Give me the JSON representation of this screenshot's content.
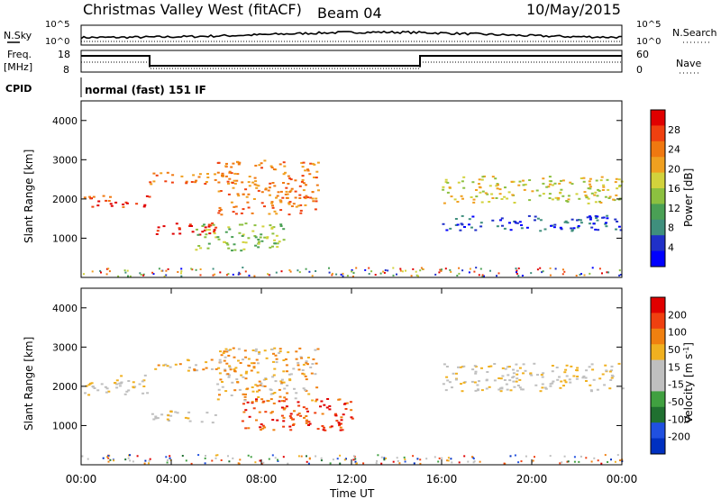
{
  "header": {
    "title": "Christmas Valley West (fitACF)",
    "beam": "Beam 04",
    "date": "10/May/2015"
  },
  "top_panels": {
    "nsky_label": "N.Sky",
    "nsearch_label": "N.Search",
    "noise_ticks": [
      "10^5",
      "10^0"
    ],
    "freq_label_line1": "Freq.",
    "freq_label_line2": "[MHz]",
    "freq_ticks": [
      "18",
      "8"
    ],
    "nave_label": "Nave",
    "nave_ticks": [
      "60",
      "0"
    ],
    "cpid_label": "CPID",
    "cpid_value": "normal (fast) 151 IF"
  },
  "colors": {
    "power_scale": [
      "#0000ff",
      "#2030c8",
      "#3f8f7d",
      "#4aa055",
      "#8cc040",
      "#d2d23c",
      "#f0a020",
      "#f07810",
      "#f04010",
      "#e00000"
    ],
    "velocity_scale": [
      "#0030c0",
      "#2050e0",
      "#207030",
      "#40a040",
      "#bfbfbf",
      "#bfbfbf",
      "#f0b020",
      "#f08010",
      "#f04010",
      "#e00000"
    ],
    "ground": "#bdbdb0"
  },
  "chart_data": [
    {
      "type": "heatmap",
      "name": "power-panel",
      "ylabel": "Slant Range [km]",
      "ylim": [
        0,
        4500
      ],
      "yticks": [
        "4000",
        "3000",
        "2000",
        "1000"
      ],
      "xlim": [
        0,
        24
      ],
      "colorbar_label": "Power [dB]",
      "colorbar_ticks": [
        "28",
        "24",
        "20",
        "16",
        "12",
        "8",
        "4"
      ],
      "bands": [
        {
          "x": [
            0,
            3
          ],
          "y": [
            1800,
            2100
          ],
          "level": 8
        },
        {
          "x": [
            3,
            6
          ],
          "y": [
            1100,
            1400
          ],
          "level": 9
        },
        {
          "x": [
            3,
            7
          ],
          "y": [
            2400,
            2700
          ],
          "level": 7
        },
        {
          "x": [
            6,
            10.5
          ],
          "y": [
            1600,
            3000
          ],
          "level": 7
        },
        {
          "x": [
            5,
            9
          ],
          "y": [
            700,
            1400
          ],
          "level": 4
        },
        {
          "x": [
            16,
            24
          ],
          "y": [
            1900,
            2600
          ],
          "level": 5
        },
        {
          "x": [
            16,
            24
          ],
          "y": [
            1200,
            1600
          ],
          "level": 1
        }
      ]
    },
    {
      "type": "heatmap",
      "name": "velocity-panel",
      "ylabel": "Slant Range [km]",
      "ylim": [
        0,
        4500
      ],
      "yticks": [
        "4000",
        "3000",
        "2000",
        "1000"
      ],
      "xlim": [
        0,
        24
      ],
      "xticks": [
        "00:00",
        "04:00",
        "08:00",
        "12:00",
        "16:00",
        "20:00",
        "00:00"
      ],
      "xlabel": "Time UT",
      "colorbar_label": "Velocity [m s",
      "colorbar_label_sup": "-1",
      "colorbar_ticks": [
        "200",
        "100",
        "50",
        "15",
        "-15",
        "-50",
        "-100",
        "-200"
      ],
      "bands": [
        {
          "x": [
            0,
            3
          ],
          "y": [
            1800,
            2300
          ],
          "level": 5
        },
        {
          "x": [
            3,
            6
          ],
          "y": [
            1100,
            1400
          ],
          "level": 5
        },
        {
          "x": [
            3,
            7
          ],
          "y": [
            2400,
            2700
          ],
          "level": 6
        },
        {
          "x": [
            6,
            10.5
          ],
          "y": [
            1600,
            3000
          ],
          "level": 6
        },
        {
          "x": [
            7,
            12
          ],
          "y": [
            900,
            1700
          ],
          "level": 8
        },
        {
          "x": [
            16,
            24
          ],
          "y": [
            1900,
            2600
          ],
          "level": 5
        }
      ]
    }
  ]
}
